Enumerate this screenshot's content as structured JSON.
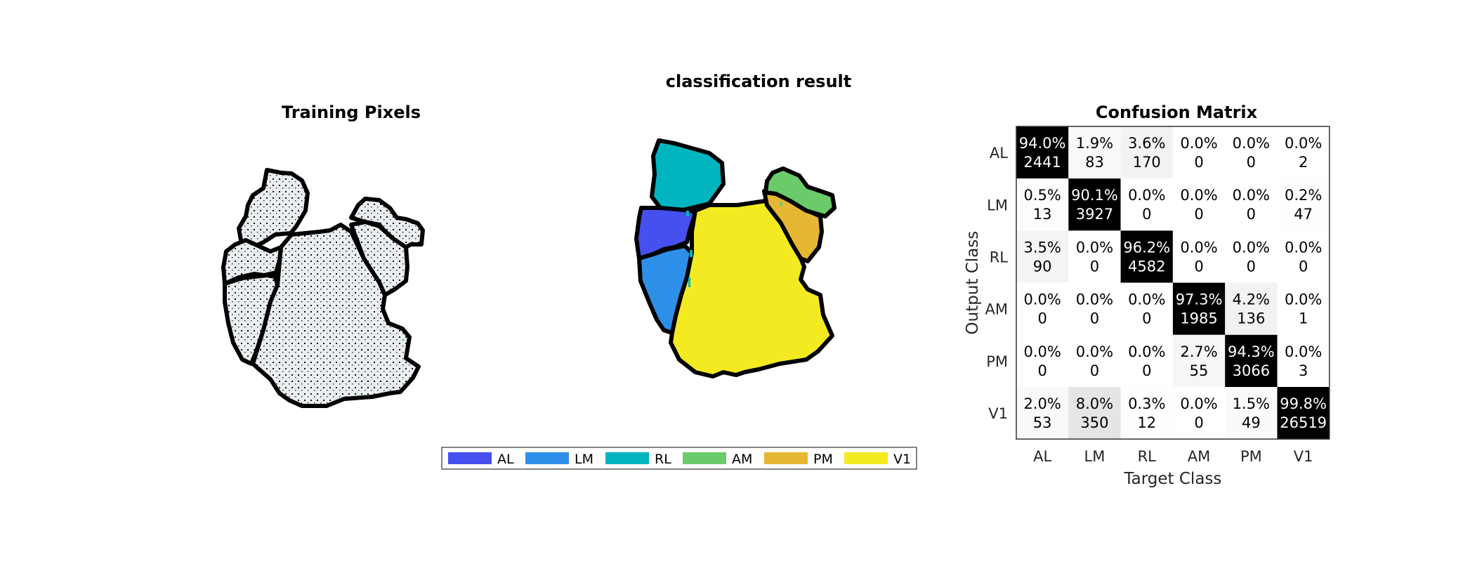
{
  "training_panel": {
    "title": "Training Pixels"
  },
  "result_panel": {
    "title": "classification result"
  },
  "legend": {
    "entries": [
      {
        "label": "AL",
        "color": "#4550EE"
      },
      {
        "label": "LM",
        "color": "#2E8FE9"
      },
      {
        "label": "RL",
        "color": "#00B5C0"
      },
      {
        "label": "AM",
        "color": "#6ACB6A"
      },
      {
        "label": "PM",
        "color": "#E6B732"
      },
      {
        "label": "V1",
        "color": "#F3EA22"
      }
    ]
  },
  "chart_data": {
    "type": "heatmap",
    "title": "Confusion Matrix",
    "xlabel": "Target Class",
    "ylabel": "Output Class",
    "x_categories": [
      "AL",
      "LM",
      "RL",
      "AM",
      "PM",
      "V1"
    ],
    "y_categories": [
      "AL",
      "LM",
      "RL",
      "AM",
      "PM",
      "V1"
    ],
    "cells": [
      [
        {
          "pct": "94.0%",
          "count": 2441
        },
        {
          "pct": "1.9%",
          "count": 83
        },
        {
          "pct": "3.6%",
          "count": 170
        },
        {
          "pct": "0.0%",
          "count": 0
        },
        {
          "pct": "0.0%",
          "count": 0
        },
        {
          "pct": "0.0%",
          "count": 2
        }
      ],
      [
        {
          "pct": "0.5%",
          "count": 13
        },
        {
          "pct": "90.1%",
          "count": 3927
        },
        {
          "pct": "0.0%",
          "count": 0
        },
        {
          "pct": "0.0%",
          "count": 0
        },
        {
          "pct": "0.0%",
          "count": 0
        },
        {
          "pct": "0.2%",
          "count": 47
        }
      ],
      [
        {
          "pct": "3.5%",
          "count": 90
        },
        {
          "pct": "0.0%",
          "count": 0
        },
        {
          "pct": "96.2%",
          "count": 4582
        },
        {
          "pct": "0.0%",
          "count": 0
        },
        {
          "pct": "0.0%",
          "count": 0
        },
        {
          "pct": "0.0%",
          "count": 0
        }
      ],
      [
        {
          "pct": "0.0%",
          "count": 0
        },
        {
          "pct": "0.0%",
          "count": 0
        },
        {
          "pct": "0.0%",
          "count": 0
        },
        {
          "pct": "97.3%",
          "count": 1985
        },
        {
          "pct": "4.2%",
          "count": 136
        },
        {
          "pct": "0.0%",
          "count": 1
        }
      ],
      [
        {
          "pct": "0.0%",
          "count": 0
        },
        {
          "pct": "0.0%",
          "count": 0
        },
        {
          "pct": "0.0%",
          "count": 0
        },
        {
          "pct": "2.7%",
          "count": 55
        },
        {
          "pct": "94.3%",
          "count": 3066
        },
        {
          "pct": "0.0%",
          "count": 3
        }
      ],
      [
        {
          "pct": "2.0%",
          "count": 53
        },
        {
          "pct": "8.0%",
          "count": 350
        },
        {
          "pct": "0.3%",
          "count": 12
        },
        {
          "pct": "0.0%",
          "count": 0
        },
        {
          "pct": "1.5%",
          "count": 49
        },
        {
          "pct": "99.8%",
          "count": 26519
        }
      ]
    ]
  }
}
